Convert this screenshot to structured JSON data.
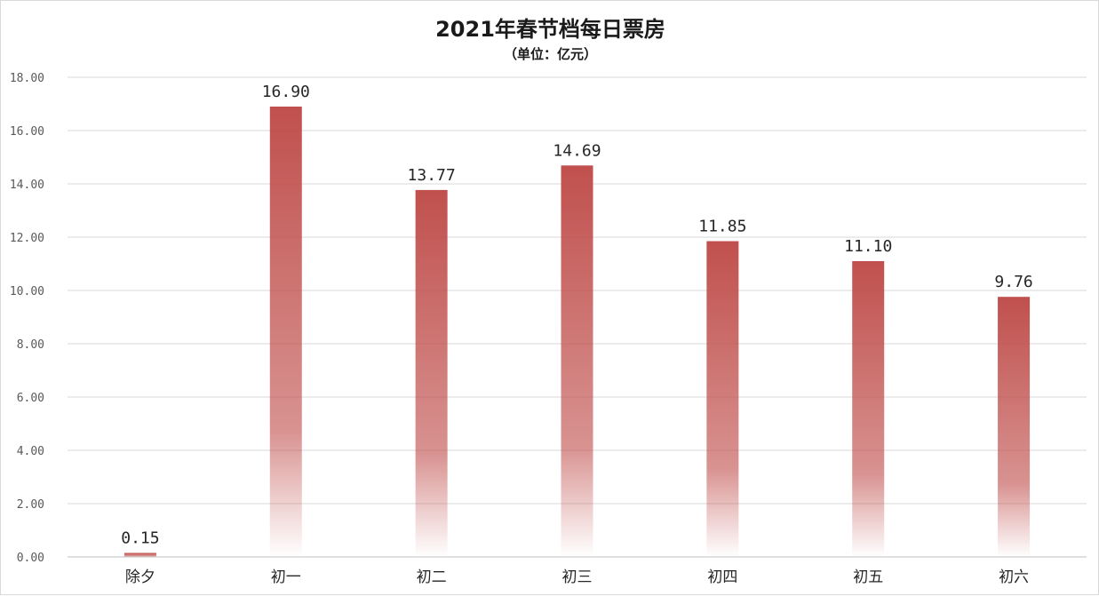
{
  "chart_data": {
    "type": "bar",
    "title": "2021年春节档每日票房",
    "subtitle": "（单位：亿元）",
    "categories": [
      "除夕",
      "初一",
      "初二",
      "初三",
      "初四",
      "初五",
      "初六"
    ],
    "values": [
      0.15,
      16.9,
      13.77,
      14.69,
      11.85,
      11.1,
      9.76
    ],
    "data_labels": [
      "0.15",
      "16.90",
      "13.77",
      "14.69",
      "11.85",
      "11.10",
      "9.76"
    ],
    "yticks": [
      "0.00",
      "2.00",
      "4.00",
      "6.00",
      "8.00",
      "10.00",
      "12.00",
      "14.00",
      "16.00",
      "18.00"
    ],
    "ylim": [
      0,
      18
    ],
    "xlabel": "",
    "ylabel": "",
    "grid": true,
    "legend": "none",
    "bar_color": "#c0504d"
  }
}
